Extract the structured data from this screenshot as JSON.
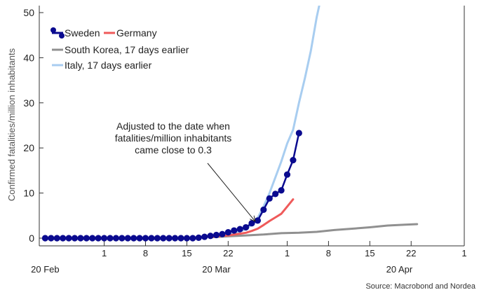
{
  "chart_data": {
    "type": "line",
    "title": "",
    "xlabel": "",
    "ylabel": "Confirmed fatalities/million inhabitants",
    "ylim": [
      0,
      50
    ],
    "yticks": [
      0,
      10,
      20,
      30,
      40,
      50
    ],
    "xlim": [
      "2020-02-19",
      "2020-05-01"
    ],
    "x_day_ticks": [
      {
        "date": "2020-03-01",
        "label": "1"
      },
      {
        "date": "2020-03-08",
        "label": "8"
      },
      {
        "date": "2020-03-15",
        "label": "15"
      },
      {
        "date": "2020-03-22",
        "label": "22"
      },
      {
        "date": "2020-04-01",
        "label": "1"
      },
      {
        "date": "2020-04-08",
        "label": "8"
      },
      {
        "date": "2020-04-15",
        "label": "15"
      },
      {
        "date": "2020-04-22",
        "label": "22"
      },
      {
        "date": "2020-05-01",
        "label": "1"
      }
    ],
    "x_month_labels": [
      {
        "date": "2020-02-20",
        "label": "20 Feb"
      },
      {
        "date": "2020-03-20",
        "label": "20 Mar"
      },
      {
        "date": "2020-04-20",
        "label": "20 Apr"
      }
    ],
    "grid": false,
    "legend_position": "top-left",
    "annotation": {
      "lines": [
        "Adjusted to the date when",
        "fatalities/million inhabitants",
        "came close to 0.3"
      ],
      "arrow_target": [
        "2020-03-27",
        3.5
      ]
    },
    "source": "Source: Macrobond and Nordea",
    "series": [
      {
        "name": "Sweden",
        "color": "#0a0a8f",
        "marker": true,
        "points": [
          [
            "2020-02-20",
            0
          ],
          [
            "2020-02-21",
            0
          ],
          [
            "2020-02-22",
            0
          ],
          [
            "2020-02-23",
            0
          ],
          [
            "2020-02-24",
            0
          ],
          [
            "2020-02-25",
            0
          ],
          [
            "2020-02-26",
            0
          ],
          [
            "2020-02-27",
            0
          ],
          [
            "2020-02-28",
            0
          ],
          [
            "2020-02-29",
            0
          ],
          [
            "2020-03-01",
            0
          ],
          [
            "2020-03-02",
            0
          ],
          [
            "2020-03-03",
            0
          ],
          [
            "2020-03-04",
            0
          ],
          [
            "2020-03-05",
            0
          ],
          [
            "2020-03-06",
            0
          ],
          [
            "2020-03-07",
            0
          ],
          [
            "2020-03-08",
            0
          ],
          [
            "2020-03-09",
            0
          ],
          [
            "2020-03-10",
            0
          ],
          [
            "2020-03-11",
            0
          ],
          [
            "2020-03-12",
            0
          ],
          [
            "2020-03-13",
            0
          ],
          [
            "2020-03-14",
            0
          ],
          [
            "2020-03-15",
            0
          ],
          [
            "2020-03-16",
            0
          ],
          [
            "2020-03-17",
            0.1
          ],
          [
            "2020-03-18",
            0.3
          ],
          [
            "2020-03-19",
            0.5
          ],
          [
            "2020-03-20",
            0.7
          ],
          [
            "2020-03-21",
            0.9
          ],
          [
            "2020-03-22",
            1.3
          ],
          [
            "2020-03-23",
            1.7
          ],
          [
            "2020-03-24",
            2.0
          ],
          [
            "2020-03-25",
            2.4
          ],
          [
            "2020-03-26",
            3.3
          ],
          [
            "2020-03-27",
            3.9
          ],
          [
            "2020-03-28",
            6.3
          ],
          [
            "2020-03-29",
            8.8
          ],
          [
            "2020-03-30",
            9.8
          ],
          [
            "2020-03-31",
            10.6
          ],
          [
            "2020-04-01",
            14.1
          ],
          [
            "2020-04-02",
            17.3
          ],
          [
            "2020-04-03",
            23.3
          ]
        ]
      },
      {
        "name": "Germany",
        "color": "#ef5a5a",
        "marker": false,
        "points": [
          [
            "2020-03-19",
            0.3
          ],
          [
            "2020-03-20",
            0.4
          ],
          [
            "2020-03-21",
            0.5
          ],
          [
            "2020-03-22",
            0.6
          ],
          [
            "2020-03-23",
            0.8
          ],
          [
            "2020-03-24",
            1.0
          ],
          [
            "2020-03-25",
            1.2
          ],
          [
            "2020-03-26",
            1.6
          ],
          [
            "2020-03-27",
            2.1
          ],
          [
            "2020-03-28",
            2.9
          ],
          [
            "2020-03-29",
            3.8
          ],
          [
            "2020-03-30",
            4.6
          ],
          [
            "2020-03-31",
            5.4
          ],
          [
            "2020-04-01",
            7.0
          ],
          [
            "2020-04-02",
            8.6
          ]
        ]
      },
      {
        "name": "South Korea, 17 days earlier",
        "color": "#909090",
        "marker": false,
        "points": [
          [
            "2020-03-19",
            0.2
          ],
          [
            "2020-03-22",
            0.4
          ],
          [
            "2020-03-25",
            0.6
          ],
          [
            "2020-03-28",
            0.8
          ],
          [
            "2020-03-31",
            1.1
          ],
          [
            "2020-04-03",
            1.2
          ],
          [
            "2020-04-06",
            1.4
          ],
          [
            "2020-04-09",
            1.8
          ],
          [
            "2020-04-12",
            2.1
          ],
          [
            "2020-04-15",
            2.4
          ],
          [
            "2020-04-18",
            2.8
          ],
          [
            "2020-04-21",
            3.0
          ],
          [
            "2020-04-23",
            3.1
          ]
        ]
      },
      {
        "name": "Italy, 17 days earlier",
        "color": "#a8cdf0",
        "marker": false,
        "points": [
          [
            "2020-03-19",
            0.2
          ],
          [
            "2020-03-21",
            0.5
          ],
          [
            "2020-03-23",
            1.0
          ],
          [
            "2020-03-25",
            2.0
          ],
          [
            "2020-03-26",
            3.0
          ],
          [
            "2020-03-27",
            4.5
          ],
          [
            "2020-03-28",
            7.0
          ],
          [
            "2020-03-29",
            10.0
          ],
          [
            "2020-03-30",
            13.5
          ],
          [
            "2020-03-31",
            17.0
          ],
          [
            "2020-04-01",
            21.0
          ],
          [
            "2020-04-02",
            24.0
          ],
          [
            "2020-04-03",
            30.0
          ],
          [
            "2020-04-04",
            35.5
          ],
          [
            "2020-04-05",
            41.5
          ],
          [
            "2020-04-06",
            49.0
          ],
          [
            "2020-04-07",
            55.0
          ]
        ]
      }
    ]
  }
}
